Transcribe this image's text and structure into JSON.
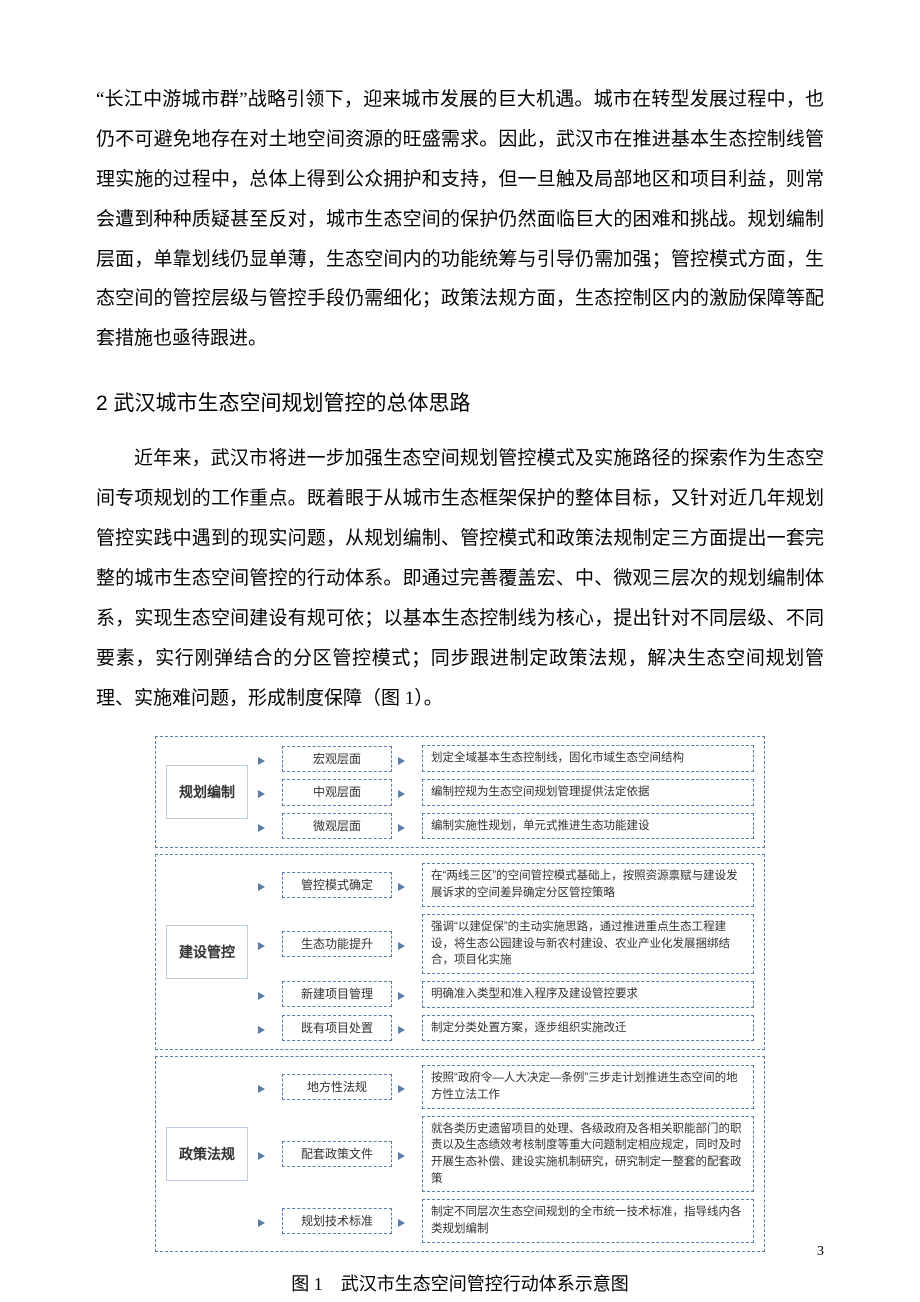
{
  "paras": {
    "p1": "“长江中游城市群”战略引领下，迎来城市发展的巨大机遇。城市在转型发展过程中，也仍不可避免地存在对土地空间资源的旺盛需求。因此，武汉市在推进基本生态控制线管理实施的过程中，总体上得到公众拥护和支持，但一旦触及局部地区和项目利益，则常会遭到种种质疑甚至反对，城市生态空间的保护仍然面临巨大的困难和挑战。规划编制层面，单靠划线仍显单薄，生态空间内的功能统筹与引导仍需加强；管控模式方面，生态空间的管控层级与管控手段仍需细化；政策法规方面，生态控制区内的激励保障等配套措施也亟待跟进。",
    "h2": "2 武汉城市生态空间规划管控的总体思路",
    "p2": "近年来，武汉市将进一步加强生态空间规划管控模式及实施路径的探索作为生态空间专项规划的工作重点。既着眼于从城市生态框架保护的整体目标，又针对近几年规划管控实践中遇到的现实问题，从规划编制、管控模式和政策法规制定三方面提出一套完整的城市生态空间管控的行动体系。即通过完善覆盖宏、中、微观三层次的规划编制体系，实现生态空间建设有规可依；以基本生态控制线为核心，提出针对不同层级、不同要素，实行刚弹结合的分区管控模式；同步跟进制定政策法规，解决生态空间规划管理、实施难问题，形成制度保障（图 1）。"
  },
  "diagram": {
    "colors": {
      "border": "#5b7ea8",
      "text": "#333333"
    },
    "blocks": [
      {
        "label": "规划编制",
        "rows": [
          {
            "mid": "宏观层面",
            "right": "划定全域基本生态控制线，固化市域生态空间结构"
          },
          {
            "mid": "中观层面",
            "right": "编制控规为生态空间规划管理提供法定依据"
          },
          {
            "mid": "微观层面",
            "right": "编制实施性规划，单元式推进生态功能建设"
          }
        ]
      },
      {
        "label": "建设管控",
        "rows": [
          {
            "mid": "管控模式确定",
            "right": "在“两线三区”的空间管控模式基础上，按照资源禀赋与建设发展诉求的空间差异确定分区管控策略"
          },
          {
            "mid": "生态功能提升",
            "right": "强调“以建促保”的主动实施思路，通过推进重点生态工程建设，将生态公园建设与新农村建设、农业产业化发展捆绑结合，项目化实施"
          },
          {
            "mid": "新建项目管理",
            "right": "明确准入类型和准入程序及建设管控要求"
          },
          {
            "mid": "既有项目处置",
            "right": "制定分类处置方案，逐步组织实施改迁"
          }
        ]
      },
      {
        "label": "政策法规",
        "rows": [
          {
            "mid": "地方性法规",
            "right": "按照“政府令—人大决定—条例”三步走计划推进生态空间的地方性立法工作"
          },
          {
            "mid": "配套政策文件",
            "right": "就各类历史遗留项目的处理、各级政府及各相关职能部门的职责以及生态绩效考核制度等重大问题制定相应规定，同时及时开展生态补偿、建设实施机制研究，研究制定一整套的配套政策"
          },
          {
            "mid": "规划技术标准",
            "right": "制定不同层次生态空间规划的全市统一技术标准，指导线内各类规划编制"
          }
        ]
      }
    ]
  },
  "figcaption": "图 1 武汉市生态空间管控行动体系示意图",
  "pageNumber": "3"
}
